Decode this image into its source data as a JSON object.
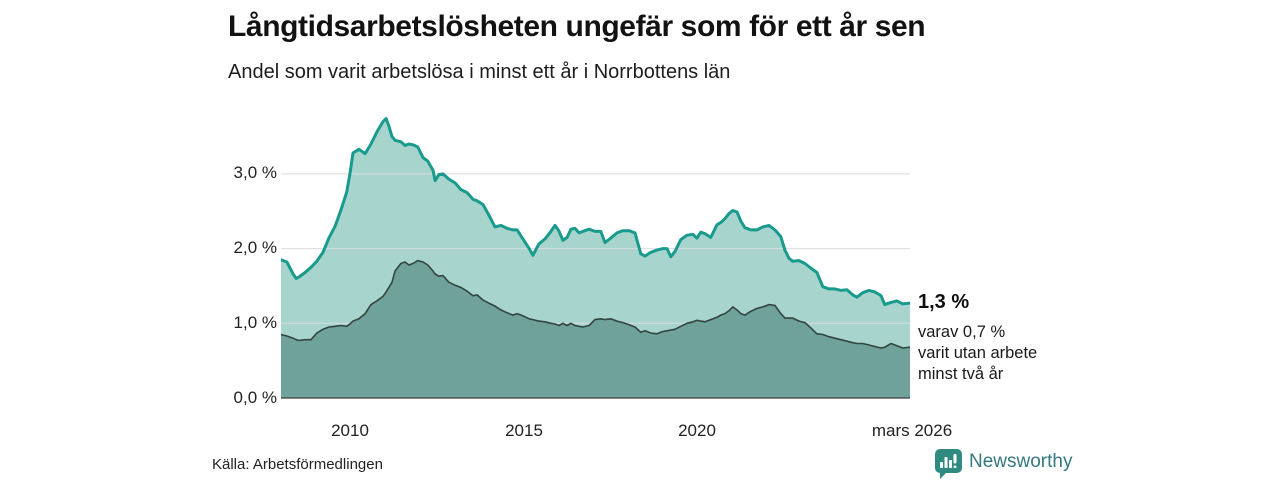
{
  "header": {
    "title": "Långtidsarbetslösheten ungefär som för ett år sen",
    "subtitle": "Andel som varit arbetslösa i minst ett år i Norrbottens län"
  },
  "annotation": {
    "value": "1,3 %",
    "detail": "varav 0,7 %\nvarit utan arbete\nminst två år"
  },
  "source": "Källa: Arbetsförmedlingen",
  "branding": {
    "name": "Newsworthy",
    "icon": "newsworthy-speech-bubble-bar-chart-icon",
    "icon_color": "#2F8B80",
    "text_color": "#35787E"
  },
  "colors": {
    "total_line": "#189B8C",
    "total_fill": "#A7D5CD",
    "two_year_line": "#32453F",
    "two_year_fill": "#6EA29A",
    "gridline": "#D9DCE0",
    "axis": "#3E3E3E"
  },
  "chart_data": {
    "type": "area",
    "title": "Långtidsarbetslösheten ungefär som för ett år sen",
    "subtitle": "Andel som varit arbetslösa i minst ett år i Norrbottens län",
    "region": "Norrbottens län",
    "unit": "%",
    "grid": "horizontal",
    "legend": "none",
    "ylim": [
      0,
      4
    ],
    "y_ticks": [
      0,
      1,
      2,
      3
    ],
    "y_tick_labels": [
      "0,0 %",
      "1,0 %",
      "2,0 %",
      "3,0 %"
    ],
    "x_range": [
      2008.0,
      2026.25
    ],
    "x_ticks": [
      2010,
      2015,
      2020,
      2026.25
    ],
    "x_tick_labels": [
      "2010",
      "2015",
      "2020",
      "mars 2026"
    ],
    "latest": {
      "x_label": "mars 2026",
      "total": 1.3,
      "two_years": 0.7
    },
    "x": [
      2008.0,
      2008.17,
      2008.35,
      2008.44,
      2008.52,
      2008.7,
      2008.87,
      2009.04,
      2009.22,
      2009.39,
      2009.57,
      2009.74,
      2009.91,
      2010.0,
      2010.09,
      2010.26,
      2010.44,
      2010.61,
      2010.78,
      2010.96,
      2011.05,
      2011.13,
      2011.22,
      2011.31,
      2011.48,
      2011.6,
      2011.71,
      2011.83,
      2011.97,
      2012.12,
      2012.26,
      2012.41,
      2012.47,
      2012.58,
      2012.7,
      2012.87,
      2013.05,
      2013.22,
      2013.4,
      2013.57,
      2013.69,
      2013.86,
      2014.03,
      2014.21,
      2014.38,
      2014.56,
      2014.73,
      2014.85,
      2015.02,
      2015.2,
      2015.31,
      2015.48,
      2015.66,
      2015.83,
      2015.95,
      2016.06,
      2016.18,
      2016.3,
      2016.41,
      2016.53,
      2016.65,
      2016.76,
      2016.94,
      2017.11,
      2017.28,
      2017.4,
      2017.57,
      2017.75,
      2017.92,
      2018.1,
      2018.27,
      2018.44,
      2018.56,
      2018.73,
      2018.91,
      2019.08,
      2019.2,
      2019.31,
      2019.43,
      2019.6,
      2019.78,
      2019.95,
      2020.07,
      2020.18,
      2020.3,
      2020.47,
      2020.65,
      2020.76,
      2020.88,
      2021.0,
      2021.11,
      2021.23,
      2021.34,
      2021.46,
      2021.63,
      2021.81,
      2021.98,
      2022.16,
      2022.33,
      2022.5,
      2022.62,
      2022.74,
      2022.85,
      2023.03,
      2023.2,
      2023.37,
      2023.55,
      2023.72,
      2023.9,
      2024.07,
      2024.25,
      2024.42,
      2024.59,
      2024.71,
      2024.88,
      2025.06,
      2025.23,
      2025.41,
      2025.52,
      2025.7,
      2025.87,
      2026.04,
      2026.25
    ],
    "series": [
      {
        "name": "Arbetslösa minst ett år",
        "color": "#189B8C",
        "fill": "#A7D5CD",
        "values": [
          1.85,
          1.82,
          1.66,
          1.6,
          1.62,
          1.68,
          1.75,
          1.83,
          1.95,
          2.14,
          2.3,
          2.52,
          2.76,
          3.0,
          3.28,
          3.33,
          3.27,
          3.4,
          3.56,
          3.7,
          3.74,
          3.64,
          3.5,
          3.45,
          3.43,
          3.38,
          3.4,
          3.39,
          3.36,
          3.22,
          3.17,
          3.05,
          2.91,
          2.99,
          3.0,
          2.93,
          2.88,
          2.79,
          2.75,
          2.66,
          2.64,
          2.59,
          2.45,
          2.29,
          2.31,
          2.27,
          2.25,
          2.25,
          2.13,
          2.0,
          1.91,
          2.06,
          2.13,
          2.23,
          2.31,
          2.24,
          2.11,
          2.15,
          2.26,
          2.27,
          2.21,
          2.23,
          2.26,
          2.23,
          2.23,
          2.08,
          2.14,
          2.21,
          2.24,
          2.24,
          2.21,
          1.93,
          1.9,
          1.95,
          1.98,
          2.0,
          2.0,
          1.89,
          1.96,
          2.12,
          2.18,
          2.19,
          2.14,
          2.22,
          2.2,
          2.15,
          2.32,
          2.35,
          2.4,
          2.47,
          2.51,
          2.49,
          2.37,
          2.28,
          2.25,
          2.25,
          2.29,
          2.31,
          2.25,
          2.16,
          1.98,
          1.87,
          1.83,
          1.84,
          1.8,
          1.74,
          1.68,
          1.49,
          1.46,
          1.46,
          1.44,
          1.45,
          1.38,
          1.35,
          1.41,
          1.44,
          1.42,
          1.37,
          1.25,
          1.28,
          1.3,
          1.26,
          1.27
        ]
      },
      {
        "name": "Varav utan arbete minst två år",
        "color": "#32453F",
        "fill": "#6EA29A",
        "values": [
          0.85,
          0.83,
          0.8,
          0.78,
          0.77,
          0.78,
          0.78,
          0.87,
          0.92,
          0.95,
          0.96,
          0.97,
          0.96,
          0.99,
          1.03,
          1.06,
          1.13,
          1.25,
          1.3,
          1.36,
          1.42,
          1.48,
          1.55,
          1.7,
          1.8,
          1.82,
          1.78,
          1.8,
          1.84,
          1.82,
          1.78,
          1.7,
          1.66,
          1.63,
          1.64,
          1.55,
          1.51,
          1.48,
          1.43,
          1.37,
          1.38,
          1.31,
          1.27,
          1.23,
          1.18,
          1.14,
          1.11,
          1.13,
          1.1,
          1.06,
          1.05,
          1.03,
          1.02,
          1.0,
          0.99,
          0.97,
          1.0,
          0.97,
          1.0,
          0.97,
          0.96,
          0.95,
          0.97,
          1.05,
          1.06,
          1.05,
          1.06,
          1.03,
          1.01,
          0.98,
          0.95,
          0.88,
          0.9,
          0.87,
          0.86,
          0.89,
          0.9,
          0.91,
          0.92,
          0.96,
          1.0,
          1.02,
          1.04,
          1.03,
          1.02,
          1.05,
          1.08,
          1.11,
          1.13,
          1.17,
          1.22,
          1.18,
          1.13,
          1.11,
          1.16,
          1.2,
          1.22,
          1.25,
          1.24,
          1.13,
          1.07,
          1.07,
          1.07,
          1.03,
          1.01,
          0.94,
          0.86,
          0.85,
          0.82,
          0.8,
          0.78,
          0.76,
          0.74,
          0.73,
          0.73,
          0.71,
          0.69,
          0.67,
          0.68,
          0.73,
          0.7,
          0.67,
          0.68
        ]
      }
    ]
  }
}
